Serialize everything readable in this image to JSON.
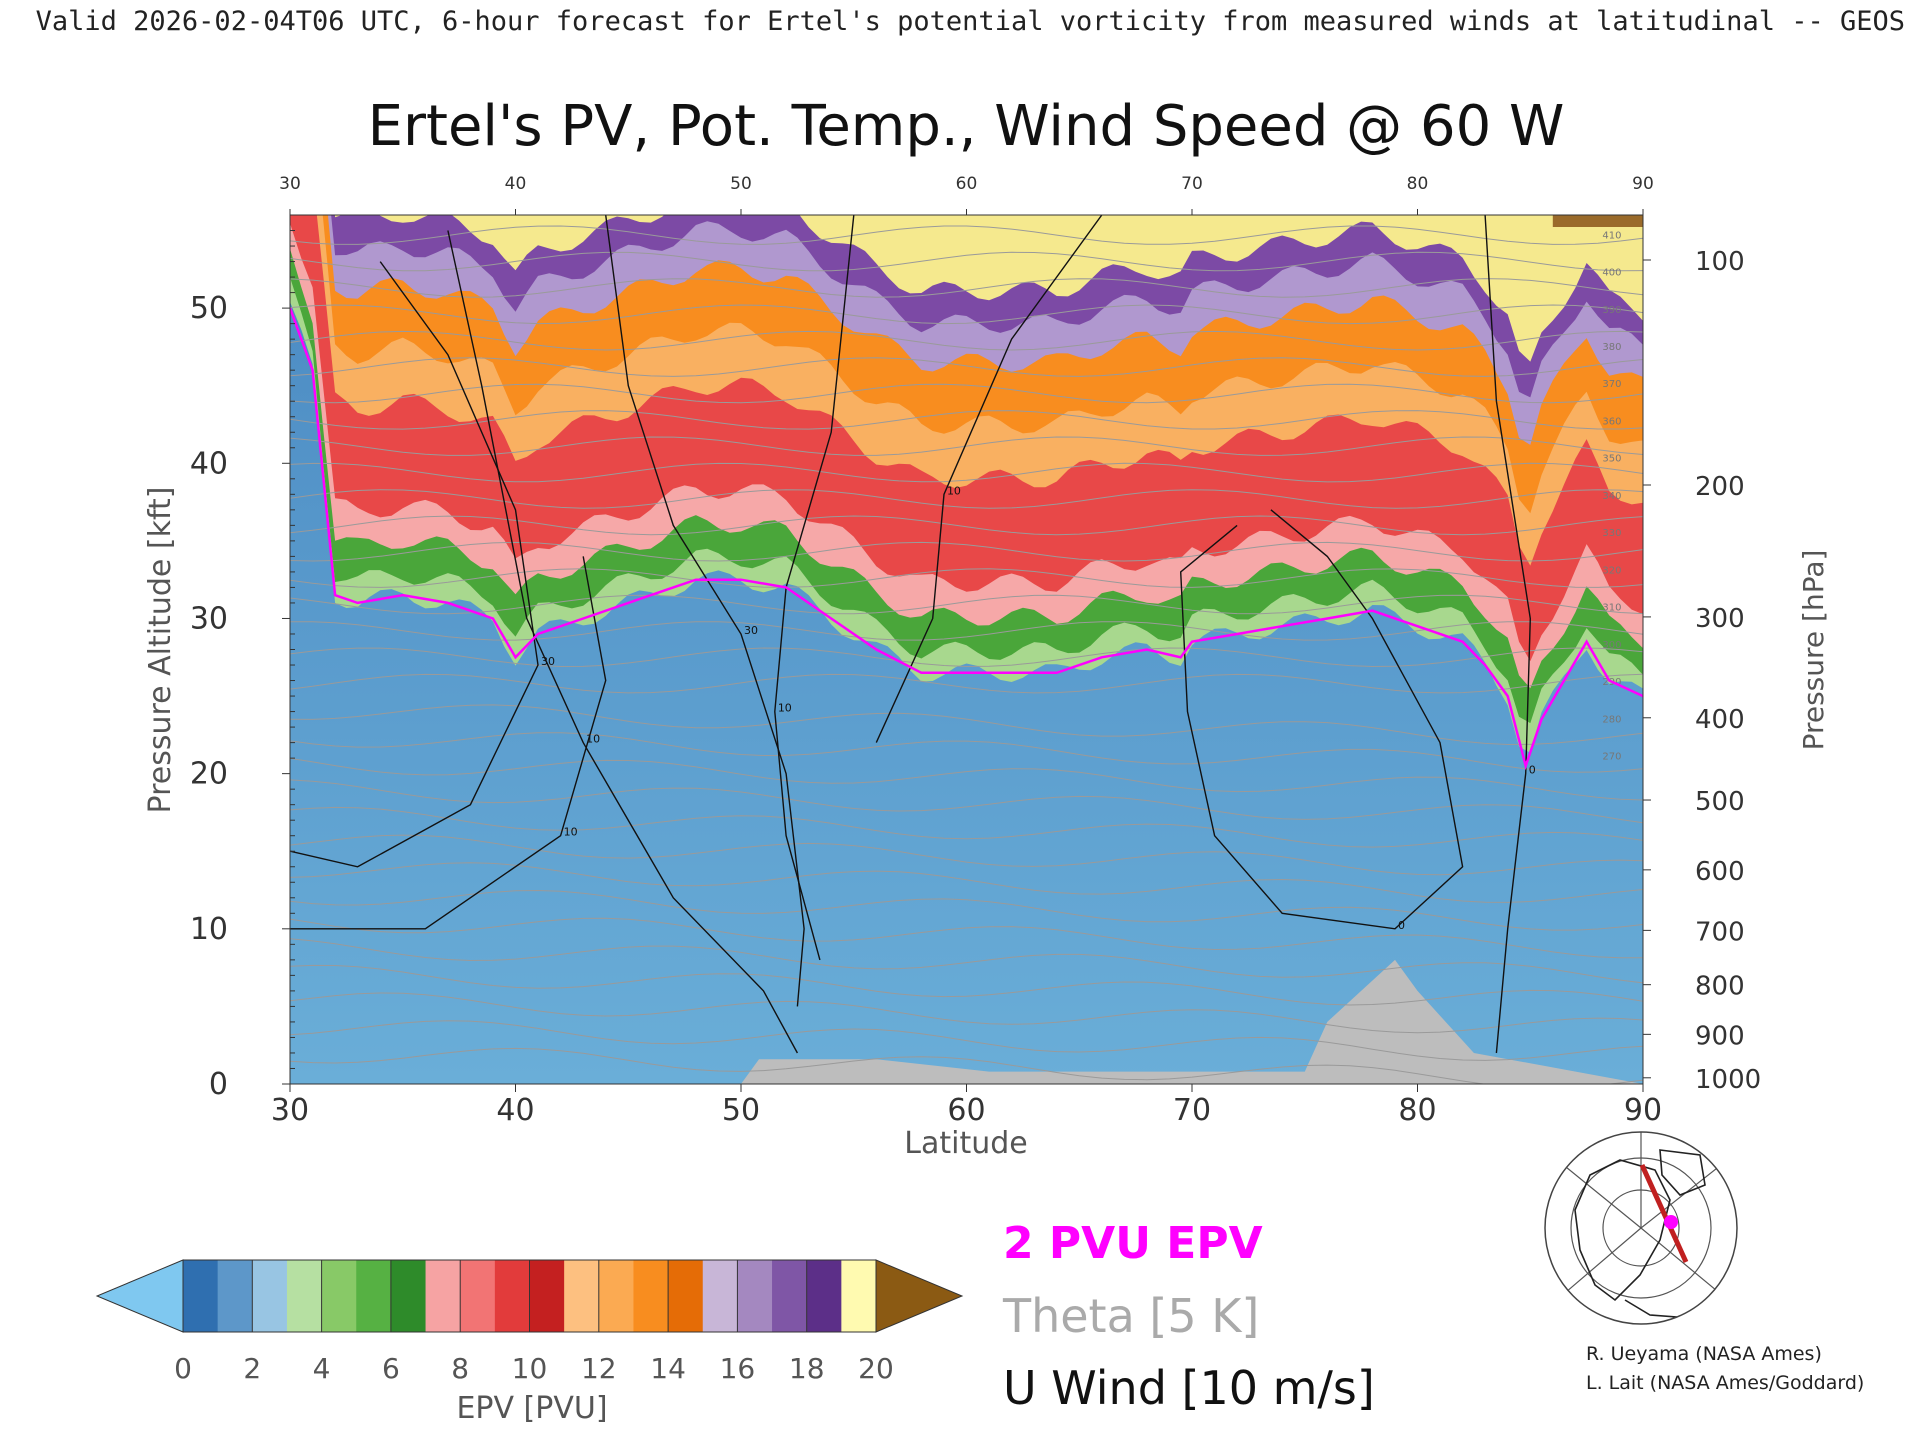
{
  "header": "Valid 2026-02-04T06 UTC, 6-hour forecast for Ertel's potential vorticity from measured winds at latitudinal -- GEOS",
  "chart_data": {
    "type": "heatmap",
    "title": "Ertel's PV, Pot. Temp., Wind Speed @ 60 W",
    "xlabel": "Latitude",
    "ylabel_left": "Pressure Altitude [kft]",
    "ylabel_right": "Pressure [hPa]",
    "xlim": [
      30,
      90
    ],
    "ylim": [
      0,
      56
    ],
    "x_ticks": [
      30,
      40,
      50,
      60,
      70,
      80,
      90
    ],
    "y_ticks": [
      0,
      10,
      20,
      30,
      40,
      50
    ],
    "pressure_ticks": [
      {
        "hpa": 100,
        "kft": 53.1
      },
      {
        "hpa": 200,
        "kft": 38.6
      },
      {
        "hpa": 300,
        "kft": 30.1
      },
      {
        "hpa": 400,
        "kft": 23.6
      },
      {
        "hpa": 500,
        "kft": 18.3
      },
      {
        "hpa": 600,
        "kft": 13.8
      },
      {
        "hpa": 700,
        "kft": 9.9
      },
      {
        "hpa": 800,
        "kft": 6.4
      },
      {
        "hpa": 900,
        "kft": 3.2
      },
      {
        "hpa": 1000,
        "kft": 0.4
      }
    ],
    "pv_2pvu_boundary": {
      "lat": [
        30,
        31,
        32,
        33,
        35,
        37,
        39,
        40,
        41,
        43,
        45,
        47,
        48,
        50,
        52,
        54,
        56,
        58,
        60,
        62,
        64,
        66,
        68,
        69.5,
        70,
        72,
        74,
        76,
        78,
        80,
        82,
        83,
        84,
        84.8,
        85.5,
        86.5,
        87.5,
        88.5,
        90
      ],
      "kft": [
        50,
        46,
        31.5,
        31,
        31.5,
        31,
        30,
        27.5,
        29,
        30,
        31,
        32,
        32.5,
        32.5,
        32,
        30,
        28,
        26.5,
        26.5,
        26.5,
        26.5,
        27.5,
        28,
        27.5,
        28.5,
        29,
        29.5,
        30,
        30.5,
        29.5,
        28.5,
        27,
        25,
        20.5,
        23.5,
        26,
        28.5,
        26,
        25
      ]
    },
    "epv_colorbar": {
      "label": "EPV [PVU]",
      "ticks": [
        0,
        2,
        4,
        6,
        8,
        10,
        12,
        14,
        16,
        18,
        20
      ],
      "colors": [
        "#7fc8f0",
        "#2f6fb0",
        "#5d97c9",
        "#98c5e3",
        "#b6e0a2",
        "#88c967",
        "#56b143",
        "#2e8b2a",
        "#f6a3a3",
        "#f27474",
        "#e23b3b",
        "#c42020",
        "#fdc080",
        "#fbaa52",
        "#f88d1f",
        "#e56c06",
        "#c8b6d7",
        "#a488c0",
        "#7f56a6",
        "#5c2f88",
        "#fffab0",
        "#f3dc7e",
        "#e2b55a",
        "#8b5a13"
      ]
    },
    "legend": [
      {
        "label": "2 PVU EPV",
        "color": "#ff00ff"
      },
      {
        "label": "Theta [5 K]",
        "color": "#aaaaaa"
      },
      {
        "label": "U Wind [10 m/s]",
        "color": "#111111"
      }
    ],
    "theta_labels": [
      "410",
      "400",
      "390",
      "380",
      "370",
      "360",
      "350",
      "340",
      "330",
      "320",
      "310",
      "300",
      "290",
      "280",
      "270"
    ],
    "wind_labels": [
      "30",
      "10",
      "0"
    ],
    "topography_color": "#bdbdbd"
  },
  "credits": {
    "line1": "R. Ueyama (NASA Ames)",
    "line2": "L. Lait (NASA Ames/Goddard)"
  }
}
